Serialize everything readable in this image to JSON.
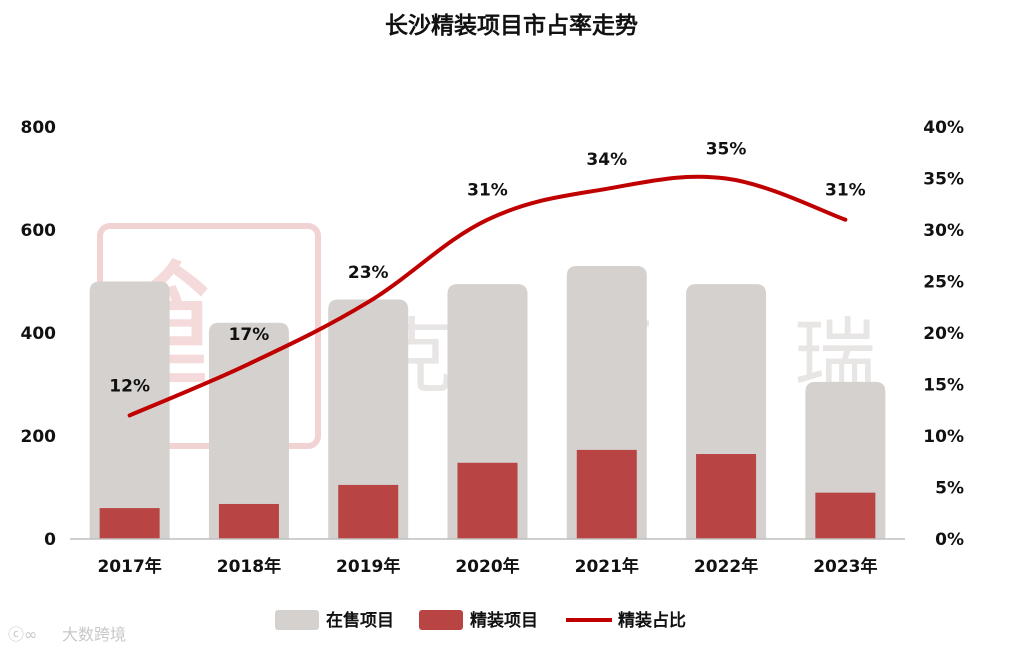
{
  "chart_data": {
    "type": "bar",
    "title": "长沙精装项目市占率走势",
    "categories": [
      "2017年",
      "2018年",
      "2019年",
      "2020年",
      "2021年",
      "2022年",
      "2023年"
    ],
    "series": [
      {
        "name": "在售项目",
        "type": "bar",
        "axis": "left",
        "color": "#d5d1ce",
        "values": [
          500,
          420,
          465,
          495,
          530,
          495,
          305
        ]
      },
      {
        "name": "精装项目",
        "type": "bar",
        "axis": "left",
        "color": "#b84444",
        "values": [
          60,
          68,
          105,
          148,
          173,
          165,
          90
        ]
      },
      {
        "name": "精装占比",
        "type": "line",
        "axis": "right",
        "color": "#c00000",
        "values": [
          12,
          17,
          23,
          31,
          34,
          35,
          31
        ],
        "labels": [
          "12%",
          "17%",
          "23%",
          "31%",
          "34%",
          "35%",
          "31%"
        ]
      }
    ],
    "y_left": {
      "range": [
        0,
        800
      ],
      "ticks": [
        "0",
        "200",
        "400",
        "600",
        "800"
      ]
    },
    "y_right": {
      "range": [
        0,
        40
      ],
      "ticks": [
        "0%",
        "5%",
        "10%",
        "15%",
        "20%",
        "25%",
        "30%",
        "35%",
        "40%"
      ]
    },
    "grid": false,
    "legend_position": "bottom"
  },
  "watermark": {
    "chars": [
      "克",
      "而",
      "瑞"
    ]
  },
  "footer": {
    "text": "大数跨境"
  }
}
